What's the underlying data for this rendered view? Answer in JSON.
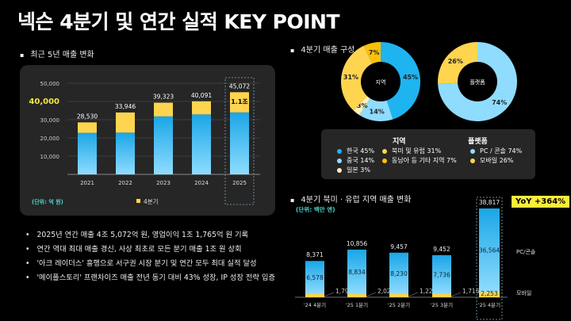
{
  "title": "넥슨 4분기 및 연간 실적 KEY POINT",
  "colors": {
    "blue": "#1eb4f0",
    "light_blue": "#8fdcff",
    "yellow": "#ffd54f",
    "amber": "#ffc107",
    "cream": "#fff1b8",
    "highlight": "#f0e74a",
    "teal": "#4fd1c5"
  },
  "left_section": {
    "heading": "최근 5년 매출 변화"
  },
  "chart_data": [
    {
      "type": "bar",
      "stacked": true,
      "categories": [
        "2021",
        "2022",
        "2023",
        "2024",
        "2025"
      ],
      "totals": [
        28530,
        33946,
        39323,
        40091,
        45072
      ],
      "series": [
        {
          "name": "",
          "values": [
            22800,
            22900,
            31800,
            32900,
            34000
          ]
        },
        {
          "name": "4분기",
          "values": [
            5730,
            11046,
            7523,
            7191,
            11072
          ]
        }
      ],
      "total_labels": [
        "28,530",
        "33,946",
        "39,323",
        "40,091",
        "45,072"
      ],
      "annotation": "1.1조",
      "yticks": [
        "10,000",
        "20,000",
        "30,000",
        "40,000",
        "50,000"
      ],
      "highlight_tick": "40,000",
      "ylim": [
        0,
        50000
      ],
      "unit": "(단위: 억 원)",
      "legend": "4분기",
      "grid": true
    },
    {
      "type": "pie",
      "donut": true,
      "center_label": "지역",
      "slices": [
        {
          "name": "한국",
          "value": 45
        },
        {
          "name": "중국",
          "value": 14
        },
        {
          "name": "일본",
          "value": 3
        },
        {
          "name": "북미 및 유럽",
          "value": 31
        },
        {
          "name": "동남아 등 기타 지역",
          "value": 7
        }
      ],
      "labels": [
        "45%",
        "14%",
        "3%",
        "31%",
        "7%"
      ]
    },
    {
      "type": "pie",
      "donut": true,
      "center_label": "플랫폼",
      "slices": [
        {
          "name": "PC / 콘솔",
          "value": 74
        },
        {
          "name": "모바일",
          "value": 26
        }
      ],
      "labels": [
        "74%",
        "26%"
      ]
    },
    {
      "type": "bar",
      "stacked": true,
      "categories": [
        "'24 4분기",
        "'25 1분기",
        "'25 2분기",
        "'25 3분기",
        "'25 4분기"
      ],
      "series": [
        {
          "name": "PC/콘솔",
          "values": [
            6578,
            8834,
            8230,
            7736,
            36564
          ]
        },
        {
          "name": "모바일",
          "values": [
            1793,
            2022,
            1227,
            1716,
            2253
          ]
        }
      ],
      "totals": [
        8371,
        10856,
        9457,
        9452,
        38817
      ],
      "pc_labels": [
        "6,578",
        "8,834",
        "8,230",
        "7,736",
        "36,564"
      ],
      "mobile_labels": [
        "1,793",
        "2,022",
        "1,227",
        "1,716",
        "2,253"
      ],
      "total_labels": [
        "8,371",
        "10,856",
        "9,457",
        "9,452",
        "38,817"
      ],
      "unit": "(단위: 백만 엔)",
      "yoy": "YoY +364%"
    }
  ],
  "right_top": {
    "heading": "4분기 매출 구성"
  },
  "legend": {
    "region_title": "지역",
    "platform_title": "플랫폼",
    "items": [
      "한국 45%",
      "중국 14%",
      "일본 3%",
      "북미 및 유럽 31%",
      "동남아 등 기타 지역 7%",
      "PC / 콘솔 74%",
      "모바일 26%"
    ]
  },
  "right_bottom": {
    "heading": "4분기 북미 · 유럽 지역 매출 변화"
  },
  "bullets": [
    "2025년 연간 매출 4조 5,072억 원, 영업이익 1조 1,765억 원 기록",
    "연간 역대 최대 매출 경신, 사상 최초로 모든 분기 매출 1조 원 상회",
    "'아크 레이더스' 흥행으로 서구권 시장 분기 및 연간 모두 최대 실적 달성",
    "'메이플스토리' 프랜차이즈 매출 전년 동기 대비 43% 성장, IP 성장 전략 입증"
  ]
}
